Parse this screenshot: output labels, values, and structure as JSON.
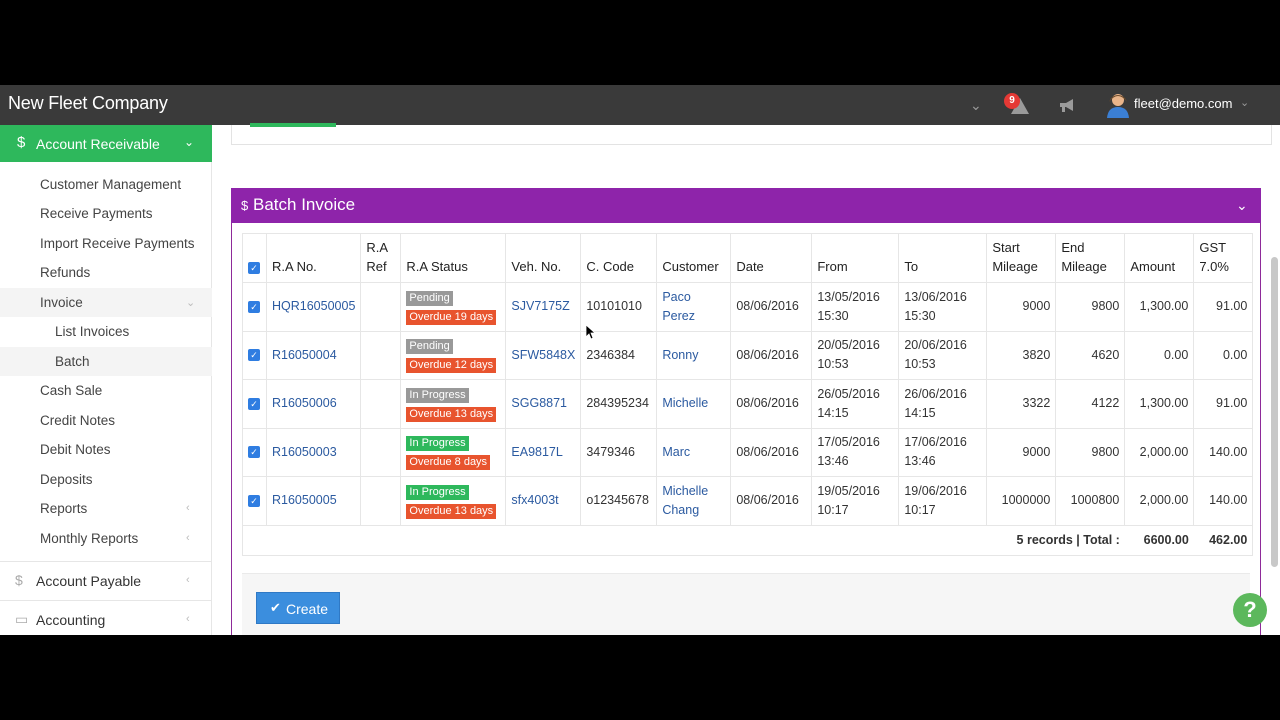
{
  "header": {
    "company": "New Fleet Company",
    "notification_count": "9",
    "user_email": "fleet@demo.com"
  },
  "sidebar": {
    "section_active": "Account Receivable",
    "items": [
      {
        "label": "Customer Management"
      },
      {
        "label": "Receive Payments"
      },
      {
        "label": "Import Receive Payments"
      },
      {
        "label": "Refunds"
      },
      {
        "label": "Invoice"
      },
      {
        "label": "List Invoices"
      },
      {
        "label": "Batch"
      },
      {
        "label": "Cash Sale"
      },
      {
        "label": "Credit Notes"
      },
      {
        "label": "Debit Notes"
      },
      {
        "label": "Deposits"
      },
      {
        "label": "Reports"
      },
      {
        "label": "Monthly Reports"
      }
    ],
    "sections": [
      {
        "label": "Account Payable"
      },
      {
        "label": "Accounting"
      }
    ]
  },
  "panel": {
    "title": "Batch Invoice",
    "create_label": "Create"
  },
  "table": {
    "columns": {
      "ra_no": "R.A No.",
      "ra_ref_1": "R.A",
      "ra_ref_2": "Ref",
      "ra_status": "R.A Status",
      "veh_no": "Veh. No.",
      "c_code": "C. Code",
      "customer": "Customer",
      "date": "Date",
      "from": "From",
      "to": "To",
      "start_1": "Start",
      "start_2": "Mileage",
      "end_1": "End",
      "end_2": "Mileage",
      "amount": "Amount",
      "gst_1": "GST",
      "gst_2": "7.0%"
    },
    "rows": [
      {
        "ra_no": "HQR16050005",
        "status": "Pending",
        "overdue": "Overdue 19 days",
        "veh": "SJV7175Z",
        "code": "10101010",
        "customer_1": "Paco Perez",
        "customer_2": "",
        "date": "08/06/2016",
        "from_d": "13/05/2016",
        "from_t": "15:30",
        "to_d": "13/06/2016",
        "to_t": "15:30",
        "start": "9000",
        "end": "9800",
        "amount": "1,300.00",
        "gst": "91.00"
      },
      {
        "ra_no": "R16050004",
        "status": "Pending",
        "overdue": "Overdue 12 days",
        "veh": "SFW5848X",
        "code": "2346384",
        "customer_1": "Ronny",
        "customer_2": "",
        "date": "08/06/2016",
        "from_d": "20/05/2016",
        "from_t": "10:53",
        "to_d": "20/06/2016",
        "to_t": "10:53",
        "start": "3820",
        "end": "4620",
        "amount": "0.00",
        "gst": "0.00"
      },
      {
        "ra_no": "R16050006",
        "status": "In Progress",
        "overdue": "Overdue 13 days",
        "veh": "SGG8871",
        "code": "284395234",
        "customer_1": "Michelle",
        "customer_2": "",
        "date": "08/06/2016",
        "from_d": "26/05/2016",
        "from_t": "14:15",
        "to_d": "26/06/2016",
        "to_t": "14:15",
        "start": "3322",
        "end": "4122",
        "amount": "1,300.00",
        "gst": "91.00"
      },
      {
        "ra_no": "R16050003",
        "status": "In Progress",
        "overdue": "Overdue 8 days",
        "veh": "EA9817L",
        "code": "3479346",
        "customer_1": "Marc",
        "customer_2": "",
        "date": "08/06/2016",
        "from_d": "17/05/2016",
        "from_t": "13:46",
        "to_d": "17/06/2016",
        "to_t": "13:46",
        "start": "9000",
        "end": "9800",
        "amount": "2,000.00",
        "gst": "140.00"
      },
      {
        "ra_no": "R16050005",
        "status": "In Progress",
        "overdue": "Overdue 13 days",
        "veh": "sfx4003t",
        "code": "o12345678",
        "customer_1": "Michelle",
        "customer_2": "Chang",
        "date": "08/06/2016",
        "from_d": "19/05/2016",
        "from_t": "10:17",
        "to_d": "19/06/2016",
        "to_t": "10:17",
        "start": "1000000",
        "end": "1000800",
        "amount": "2,000.00",
        "gst": "140.00"
      }
    ],
    "total_label": "5 records | Total :",
    "total_amount": "6600.00",
    "total_gst": "462.00"
  },
  "colors": {
    "accent_green": "#2eb85c",
    "panel_purple": "#8e24aa",
    "link_blue": "#2b5aa0",
    "overdue_red": "#e8542e"
  }
}
